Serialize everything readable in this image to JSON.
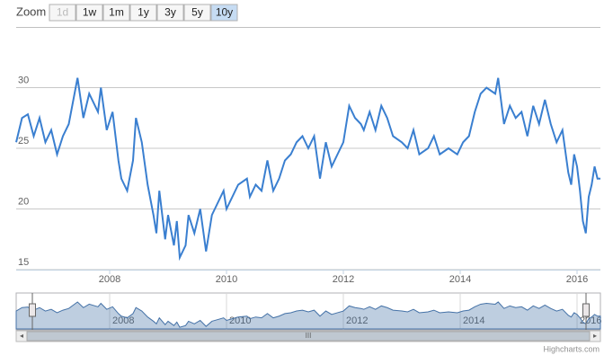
{
  "range_selector": {
    "label": "Zoom",
    "buttons": [
      "1d",
      "1w",
      "1m",
      "1y",
      "3y",
      "5y",
      "10y"
    ],
    "selected": 6,
    "disabled": [
      0
    ]
  },
  "credits": "Highcharts.com",
  "chart_data": {
    "type": "line",
    "color": "#3a7fd0",
    "grid": true,
    "xlim": [
      2006.4,
      2016.4
    ],
    "xticks": [
      2008,
      2010,
      2012,
      2014,
      2016
    ],
    "ylim": [
      15,
      35
    ],
    "yticks": [
      15,
      20,
      25,
      30
    ],
    "series": [
      {
        "color": "#3a7fd0",
        "x": [
          2006.4,
          2006.5,
          2006.6,
          2006.7,
          2006.8,
          2006.9,
          2007.0,
          2007.1,
          2007.2,
          2007.3,
          2007.45,
          2007.55,
          2007.65,
          2007.8,
          2007.85,
          2007.95,
          2008.05,
          2008.15,
          2008.2,
          2008.3,
          2008.4,
          2008.45,
          2008.55,
          2008.65,
          2008.75,
          2008.8,
          2008.85,
          2008.95,
          2009.0,
          2009.1,
          2009.15,
          2009.2,
          2009.3,
          2009.35,
          2009.45,
          2009.55,
          2009.65,
          2009.75,
          2009.85,
          2009.95,
          2010.0,
          2010.1,
          2010.2,
          2010.35,
          2010.4,
          2010.5,
          2010.6,
          2010.7,
          2010.8,
          2010.9,
          2011.0,
          2011.1,
          2011.2,
          2011.3,
          2011.4,
          2011.5,
          2011.6,
          2011.7,
          2011.8,
          2011.9,
          2012.0,
          2012.1,
          2012.2,
          2012.3,
          2012.35,
          2012.45,
          2012.55,
          2012.65,
          2012.75,
          2012.85,
          2013.0,
          2013.1,
          2013.2,
          2013.3,
          2013.45,
          2013.55,
          2013.65,
          2013.8,
          2013.95,
          2014.05,
          2014.15,
          2014.25,
          2014.35,
          2014.45,
          2014.6,
          2014.65,
          2014.75,
          2014.85,
          2014.95,
          2015.05,
          2015.15,
          2015.25,
          2015.35,
          2015.45,
          2015.55,
          2015.65,
          2015.75,
          2015.85,
          2015.9,
          2015.95,
          2016.0,
          2016.05,
          2016.1,
          2016.15,
          2016.2,
          2016.25,
          2016.3,
          2016.35,
          2016.4
        ],
        "values": [
          25.5,
          27.5,
          27.8,
          26,
          27.5,
          25.5,
          26.5,
          24.5,
          26,
          27,
          30.8,
          27.5,
          29.5,
          28,
          30,
          26.5,
          28,
          24,
          22.5,
          21.5,
          24,
          27.5,
          25.5,
          22,
          19.5,
          18,
          21.5,
          17.5,
          19.5,
          17,
          19,
          16,
          17,
          19.5,
          18,
          20,
          16.5,
          19.5,
          20.5,
          21.5,
          20,
          21,
          22,
          22.5,
          21,
          22,
          21.5,
          24,
          21.5,
          22.5,
          24,
          24.5,
          25.5,
          26,
          25,
          26,
          22.5,
          25.5,
          23.5,
          24.5,
          25.5,
          28.5,
          27.5,
          27,
          26.5,
          28,
          26.5,
          28.5,
          27.5,
          26,
          25.5,
          25,
          26.5,
          24.5,
          25,
          26,
          24.5,
          25,
          24.5,
          25.5,
          26,
          28,
          29.5,
          30,
          29.5,
          30.8,
          27,
          28.5,
          27.5,
          28,
          26,
          28.5,
          27,
          29,
          27,
          25.5,
          26.5,
          23,
          22,
          24.5,
          23.5,
          21.5,
          19,
          18,
          21,
          22,
          23.5,
          22.5,
          22.5
        ]
      }
    ]
  }
}
